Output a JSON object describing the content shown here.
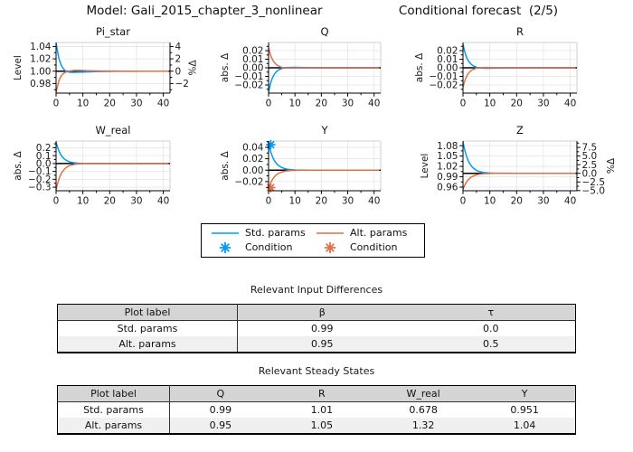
{
  "header": {
    "left_title": "Model: Gali_2015_chapter_3_nonlinear",
    "right_title": "Conditional forecast  (2/5)"
  },
  "colors": {
    "std": "#009AFA",
    "alt": "#E36F46",
    "grid": "#E4E4E4",
    "baseline": "#000000",
    "spine_light": "#CFCFCF",
    "table_header_bg": "#D5D5D5",
    "table_alt_row_bg": "#F0F0F0"
  },
  "legend": {
    "items": [
      {
        "label": "Std. params",
        "sample": "line",
        "color": "std"
      },
      {
        "label": "Condition",
        "sample": "star",
        "color": "std"
      },
      {
        "label": "Alt. params",
        "sample": "line",
        "color": "alt"
      },
      {
        "label": "Condition",
        "sample": "star",
        "color": "alt"
      }
    ]
  },
  "chart_data": [
    {
      "type": "line",
      "title": "Pi_star",
      "ylabel": "Level",
      "ylabel_right": "%Δ",
      "xlim": [
        0,
        42.5
      ],
      "ylim": [
        0.9645,
        1.0465
      ],
      "xticks": {
        "values": [
          0,
          10,
          20,
          30,
          40
        ],
        "labels": [
          "0",
          "10",
          "20",
          "30",
          "40"
        ]
      },
      "yticks": {
        "values": [
          0.98,
          1.0,
          1.02,
          1.04
        ],
        "labels": [
          "0.98",
          "1.00",
          "1.02",
          "1.04"
        ]
      },
      "yticks_right": {
        "values": [
          0.98,
          1.0,
          1.02,
          1.04
        ],
        "labels": [
          "−2",
          "0",
          "2",
          "4"
        ]
      },
      "baseline": 1.0,
      "x": [
        0,
        0.5,
        1,
        1.5,
        2,
        2.5,
        3,
        3.5,
        4,
        5,
        6,
        7,
        8,
        10,
        12,
        16,
        20,
        26,
        34,
        42
      ],
      "series": [
        {
          "name": "Std. params",
          "color": "std",
          "y": [
            1.045,
            1.0333,
            1.0215,
            1.015,
            1.009,
            1.0055,
            1.0025,
            1.0008,
            0.9995,
            0.9984,
            0.9981,
            0.9981,
            0.9983,
            0.9986,
            0.9989,
            0.9994,
            0.9997,
            0.9999,
            1.0,
            1.0
          ]
        },
        {
          "name": "Alt. params",
          "color": "alt",
          "y": [
            0.9655,
            0.9745,
            0.9838,
            0.9888,
            0.9928,
            0.9952,
            0.997,
            0.9982,
            0.9991,
            1.0004,
            1.001,
            1.0013,
            1.0013,
            1.0011,
            1.0008,
            1.0004,
            1.0002,
            1.0001,
            1.0,
            1.0
          ]
        }
      ],
      "markers": []
    },
    {
      "type": "line",
      "title": "Q",
      "ylabel": "abs. Δ",
      "ylabel_right": null,
      "xlim": [
        0,
        42.5
      ],
      "ylim": [
        -0.0295,
        0.0295
      ],
      "xticks": {
        "values": [
          0,
          10,
          20,
          30,
          40
        ],
        "labels": [
          "0",
          "10",
          "20",
          "30",
          "40"
        ]
      },
      "yticks": {
        "values": [
          -0.02,
          -0.01,
          0.0,
          0.01,
          0.02
        ],
        "labels": [
          "−0.02",
          "−0.01",
          "0.00",
          "0.01",
          "0.02"
        ]
      },
      "yticks_right": null,
      "baseline": 0.0,
      "x": [
        0,
        0.5,
        1,
        1.5,
        2,
        2.5,
        3,
        3.5,
        4,
        5,
        6,
        7,
        8,
        10,
        12,
        16,
        20,
        26,
        34,
        42
      ],
      "series": [
        {
          "name": "Std. params",
          "color": "std",
          "y": [
            -0.0285,
            -0.0212,
            -0.0155,
            -0.0114,
            -0.0085,
            -0.0062,
            -0.0045,
            -0.0032,
            -0.0022,
            -0.0008,
            -0.0001,
            0.0003,
            0.0004,
            0.0005,
            0.0004,
            0.0002,
            0.0001,
            0.0,
            0.0,
            0.0
          ]
        },
        {
          "name": "Alt. params",
          "color": "alt",
          "y": [
            0.0235,
            0.0174,
            0.0128,
            0.0094,
            0.007,
            0.0051,
            0.0036,
            0.0026,
            0.0017,
            0.0006,
            0.0,
            -0.0003,
            -0.0004,
            -0.0004,
            -0.0003,
            -0.0002,
            -0.0001,
            0.0,
            0.0,
            0.0
          ]
        }
      ],
      "markers": []
    },
    {
      "type": "line",
      "title": "R",
      "ylabel": "abs. Δ",
      "ylabel_right": null,
      "xlim": [
        0,
        42.5
      ],
      "ylim": [
        -0.0295,
        0.0295
      ],
      "xticks": {
        "values": [
          0,
          10,
          20,
          30,
          40
        ],
        "labels": [
          "0",
          "10",
          "20",
          "30",
          "40"
        ]
      },
      "yticks": {
        "values": [
          -0.02,
          -0.01,
          0.0,
          0.01,
          0.02
        ],
        "labels": [
          "−0.02",
          "−0.01",
          "0.00",
          "0.01",
          "0.02"
        ]
      },
      "yticks_right": null,
      "baseline": 0.0,
      "x": [
        0,
        0.5,
        1,
        1.5,
        2,
        2.5,
        3,
        3.5,
        4,
        5,
        6,
        7,
        8,
        10,
        12,
        16,
        20,
        26,
        34,
        42
      ],
      "series": [
        {
          "name": "Std. params",
          "color": "std",
          "y": [
            0.0275,
            0.0205,
            0.015,
            0.0111,
            0.0082,
            0.006,
            0.0043,
            0.003,
            0.002,
            0.0007,
            0.0,
            -0.0003,
            -0.0005,
            -0.0005,
            -0.0004,
            -0.0002,
            -0.0001,
            0.0,
            0.0,
            0.0
          ]
        },
        {
          "name": "Alt. params",
          "color": "alt",
          "y": [
            -0.0225,
            -0.0168,
            -0.0123,
            -0.0091,
            -0.0066,
            -0.0048,
            -0.0034,
            -0.0023,
            -0.0016,
            -0.0005,
            0.0001,
            0.0003,
            0.0004,
            0.0004,
            0.0003,
            0.0002,
            0.0001,
            0.0,
            0.0,
            0.0
          ]
        }
      ],
      "markers": []
    },
    {
      "type": "line",
      "title": "W_real",
      "ylabel": "abs. Δ",
      "ylabel_right": null,
      "xlim": [
        0,
        42.5
      ],
      "ylim": [
        -0.345,
        0.285
      ],
      "xticks": {
        "values": [
          0,
          10,
          20,
          30,
          40
        ],
        "labels": [
          "0",
          "10",
          "20",
          "30",
          "40"
        ]
      },
      "yticks": {
        "values": [
          -0.3,
          -0.2,
          -0.1,
          0.0,
          0.1,
          0.2
        ],
        "labels": [
          "−0.3",
          "−0.2",
          "−0.1",
          "0.0",
          "0.1",
          "0.2"
        ]
      },
      "yticks_right": null,
      "baseline": 0.0,
      "x": [
        0,
        0.5,
        1,
        1.5,
        2,
        2.5,
        3,
        3.5,
        4,
        5,
        6,
        7,
        8,
        10,
        12,
        16,
        20,
        26,
        34,
        42
      ],
      "series": [
        {
          "name": "Std. params",
          "color": "std",
          "y": [
            0.27,
            0.212,
            0.165,
            0.128,
            0.1,
            0.078,
            0.061,
            0.047,
            0.037,
            0.022,
            0.013,
            0.008,
            0.005,
            0.002,
            0.001,
            0.0,
            0.0,
            0.0,
            0.0,
            0.0
          ]
        },
        {
          "name": "Alt. params",
          "color": "alt",
          "y": [
            -0.335,
            -0.262,
            -0.205,
            -0.16,
            -0.125,
            -0.098,
            -0.076,
            -0.059,
            -0.046,
            -0.028,
            -0.017,
            -0.01,
            -0.006,
            -0.002,
            -0.001,
            0.0,
            0.0,
            0.0,
            0.0,
            0.0
          ]
        }
      ],
      "markers": []
    },
    {
      "type": "line",
      "title": "Y",
      "ylabel": "abs. Δ",
      "ylabel_right": null,
      "xlim": [
        0,
        42.5
      ],
      "ylim": [
        -0.036,
        0.051
      ],
      "xticks": {
        "values": [
          0,
          10,
          20,
          30,
          40
        ],
        "labels": [
          "0",
          "10",
          "20",
          "30",
          "40"
        ]
      },
      "yticks": {
        "values": [
          -0.02,
          0.0,
          0.02,
          0.04
        ],
        "labels": [
          "−0.02",
          "0.00",
          "0.02",
          "0.04"
        ]
      },
      "yticks_right": null,
      "baseline": 0.0,
      "x": [
        0,
        0.5,
        1,
        1.5,
        2,
        2.5,
        3,
        3.5,
        4,
        5,
        6,
        7,
        8,
        10,
        12,
        16,
        20,
        26,
        34,
        42
      ],
      "series": [
        {
          "name": "Std. params",
          "color": "std",
          "y": [
            0.047,
            0.0372,
            0.0295,
            0.0233,
            0.0185,
            0.0147,
            0.0116,
            0.0092,
            0.0073,
            0.0046,
            0.0029,
            0.0018,
            0.0011,
            0.0004,
            0.0002,
            0.0,
            0.0,
            0.0,
            0.0,
            0.0
          ]
        },
        {
          "name": "Alt. params",
          "color": "alt",
          "y": [
            -0.0325,
            -0.0257,
            -0.0204,
            -0.0161,
            -0.0128,
            -0.0101,
            -0.008,
            -0.0063,
            -0.005,
            -0.0032,
            -0.002,
            -0.0012,
            -0.0008,
            -0.0003,
            -0.0001,
            0.0,
            0.0,
            0.0,
            0.0,
            0.0
          ]
        }
      ],
      "markers": [
        {
          "x": 0.8,
          "y": 0.0445,
          "color": "std",
          "label": "Condition"
        },
        {
          "x": 0.8,
          "y": -0.0305,
          "color": "alt",
          "label": "Condition"
        }
      ]
    },
    {
      "type": "line",
      "title": "Z",
      "ylabel": "Level",
      "ylabel_right": "%Δ",
      "xlim": [
        0,
        42.5
      ],
      "ylim": [
        0.9495,
        1.0935
      ],
      "xticks": {
        "values": [
          0,
          10,
          20,
          30,
          40
        ],
        "labels": [
          "0",
          "10",
          "20",
          "30",
          "40"
        ]
      },
      "yticks": {
        "values": [
          0.96,
          0.99,
          1.02,
          1.05,
          1.08
        ],
        "labels": [
          "0.96",
          "0.99",
          "1.02",
          "1.05",
          "1.08"
        ]
      },
      "yticks_right": {
        "values": [
          0.95,
          0.975,
          1.0,
          1.025,
          1.05,
          1.075
        ],
        "labels": [
          "−5.0",
          "−2.5",
          "0.0",
          "2.5",
          "5.0",
          "7.5"
        ]
      },
      "baseline": 1.0,
      "x": [
        0,
        0.5,
        1,
        1.5,
        2,
        2.5,
        3,
        3.5,
        4,
        5,
        6,
        7,
        8,
        10,
        12,
        16,
        20,
        26,
        34,
        42
      ],
      "series": [
        {
          "name": "Std. params",
          "color": "std",
          "y": [
            1.091,
            1.0725,
            1.057,
            1.0455,
            1.036,
            1.0285,
            1.0225,
            1.0178,
            1.014,
            1.0087,
            1.0054,
            1.0034,
            1.0021,
            1.0008,
            1.0003,
            1.0001,
            1.0,
            1.0,
            1.0,
            1.0
          ]
        },
        {
          "name": "Alt. params",
          "color": "alt",
          "y": [
            0.954,
            0.9632,
            0.971,
            0.9768,
            0.9815,
            0.9853,
            0.9885,
            0.9909,
            0.9928,
            0.9955,
            0.9972,
            0.9983,
            0.9989,
            0.9996,
            0.9998,
            0.9999,
            1.0,
            1.0,
            1.0,
            1.0
          ]
        }
      ],
      "markers": []
    }
  ],
  "tables": [
    {
      "title": "Relevant Input Differences",
      "columns": [
        "Plot label",
        "β",
        "τ"
      ],
      "rows": [
        [
          "Std. params",
          "0.99",
          "0.0"
        ],
        [
          "Alt. params",
          "0.95",
          "0.5"
        ]
      ]
    },
    {
      "title": "Relevant Steady States",
      "columns": [
        "Plot label",
        "Q",
        "R",
        "W_real",
        "Y"
      ],
      "rows": [
        [
          "Std. params",
          "0.99",
          "1.01",
          "0.678",
          "0.951"
        ],
        [
          "Alt. params",
          "0.95",
          "1.05",
          "1.32",
          "1.04"
        ]
      ]
    }
  ]
}
